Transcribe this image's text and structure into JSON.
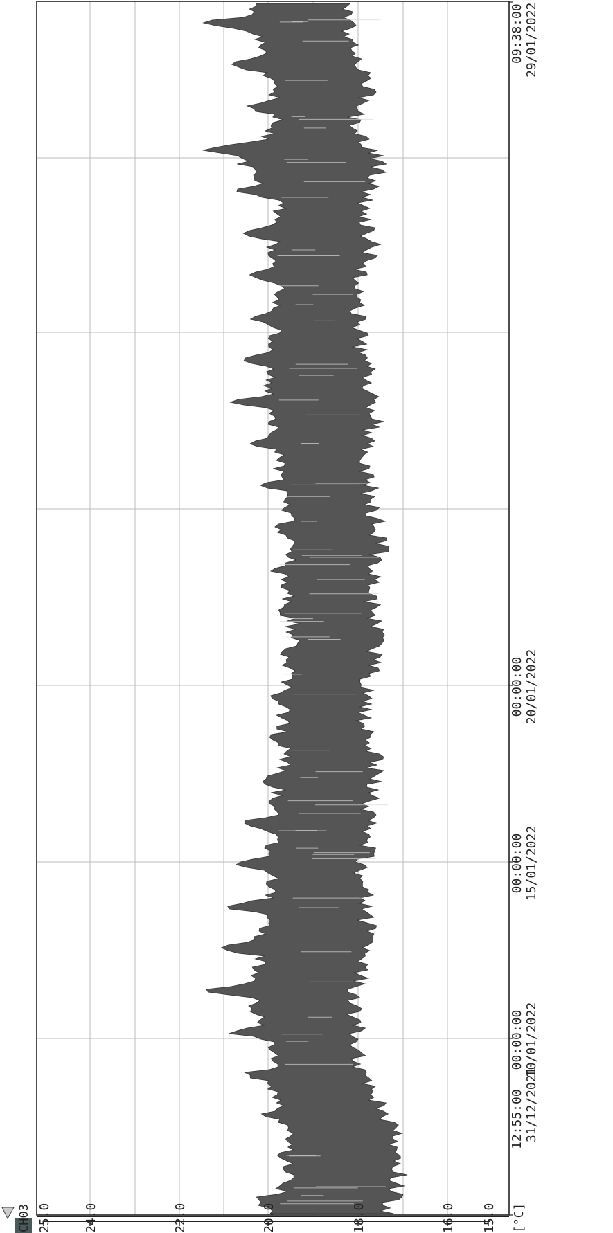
{
  "channel": "CH03",
  "unit": "[°C]",
  "chart_data": {
    "type": "line",
    "orientation": "rotated-90",
    "series": [
      {
        "values_by_day": [
          {
            "day": 0,
            "min": 17.0,
            "max": 20.6
          },
          {
            "day": 1,
            "min": 16.8,
            "max": 19.7
          },
          {
            "day": 2,
            "min": 16.9,
            "max": 19.7
          },
          {
            "day": 3,
            "min": 17.5,
            "max": 20.5
          },
          {
            "day": 4,
            "min": 17.7,
            "max": 20.4
          },
          {
            "day": 5,
            "min": 17.8,
            "max": 21.5
          },
          {
            "day": 6,
            "min": 17.6,
            "max": 21.2
          },
          {
            "day": 7,
            "min": 17.5,
            "max": 21.0
          },
          {
            "day": 8,
            "min": 17.6,
            "max": 20.5
          },
          {
            "day": 9,
            "min": 17.5,
            "max": 20.6
          },
          {
            "day": 10,
            "min": 17.4,
            "max": 20.3
          },
          {
            "day": 11,
            "min": 17.3,
            "max": 19.8
          },
          {
            "day": 12,
            "min": 17.6,
            "max": 20.0
          },
          {
            "day": 13,
            "min": 17.4,
            "max": 19.7
          },
          {
            "day": 14,
            "min": 17.3,
            "max": 19.5
          },
          {
            "day": 15,
            "min": 17.4,
            "max": 19.8
          },
          {
            "day": 16,
            "min": 17.2,
            "max": 19.7
          },
          {
            "day": 17,
            "min": 17.4,
            "max": 19.8
          },
          {
            "day": 18,
            "min": 17.6,
            "max": 20.3
          },
          {
            "day": 19,
            "min": 17.3,
            "max": 20.6
          },
          {
            "day": 20,
            "min": 17.5,
            "max": 20.8
          },
          {
            "day": 21,
            "min": 17.7,
            "max": 20.4
          },
          {
            "day": 22,
            "min": 17.8,
            "max": 20.3
          },
          {
            "day": 23,
            "min": 17.4,
            "max": 20.5
          },
          {
            "day": 24,
            "min": 17.6,
            "max": 20.1
          },
          {
            "day": 25,
            "min": 17.2,
            "max": 22.0
          },
          {
            "day": 26,
            "min": 17.8,
            "max": 20.3
          },
          {
            "day": 27,
            "min": 17.4,
            "max": 20.7
          },
          {
            "day": 28,
            "min": 17.9,
            "max": 21.3
          },
          {
            "day": 29,
            "min": 17.8,
            "max": 21.6
          }
        ]
      }
    ],
    "x_ticks": [
      {
        "day": 0,
        "time": "12:55:00",
        "date": "31/12/2021"
      },
      {
        "day": 9.46,
        "time": "00:00:00",
        "date": "10/01/2022"
      },
      {
        "day": 14.46,
        "time": "00:00:00",
        "date": "15/01/2022"
      },
      {
        "day": 19.46,
        "time": "00:00:00",
        "date": "20/01/2022"
      },
      {
        "day": 28.86,
        "time": "09:38:00",
        "date": "29/01/2022"
      }
    ],
    "xlim": [
      0,
      28.86
    ],
    "y_ticks": [
      "25.0",
      "24.0",
      "22.0",
      "20.0",
      "18.0",
      "16.0",
      "15.0"
    ],
    "ylim": [
      15,
      25
    ],
    "grid": true,
    "colors": {
      "fill": "#555555",
      "grid": "#bbbbbb",
      "frame": "#222222",
      "badge": "#4a5a5a"
    }
  }
}
